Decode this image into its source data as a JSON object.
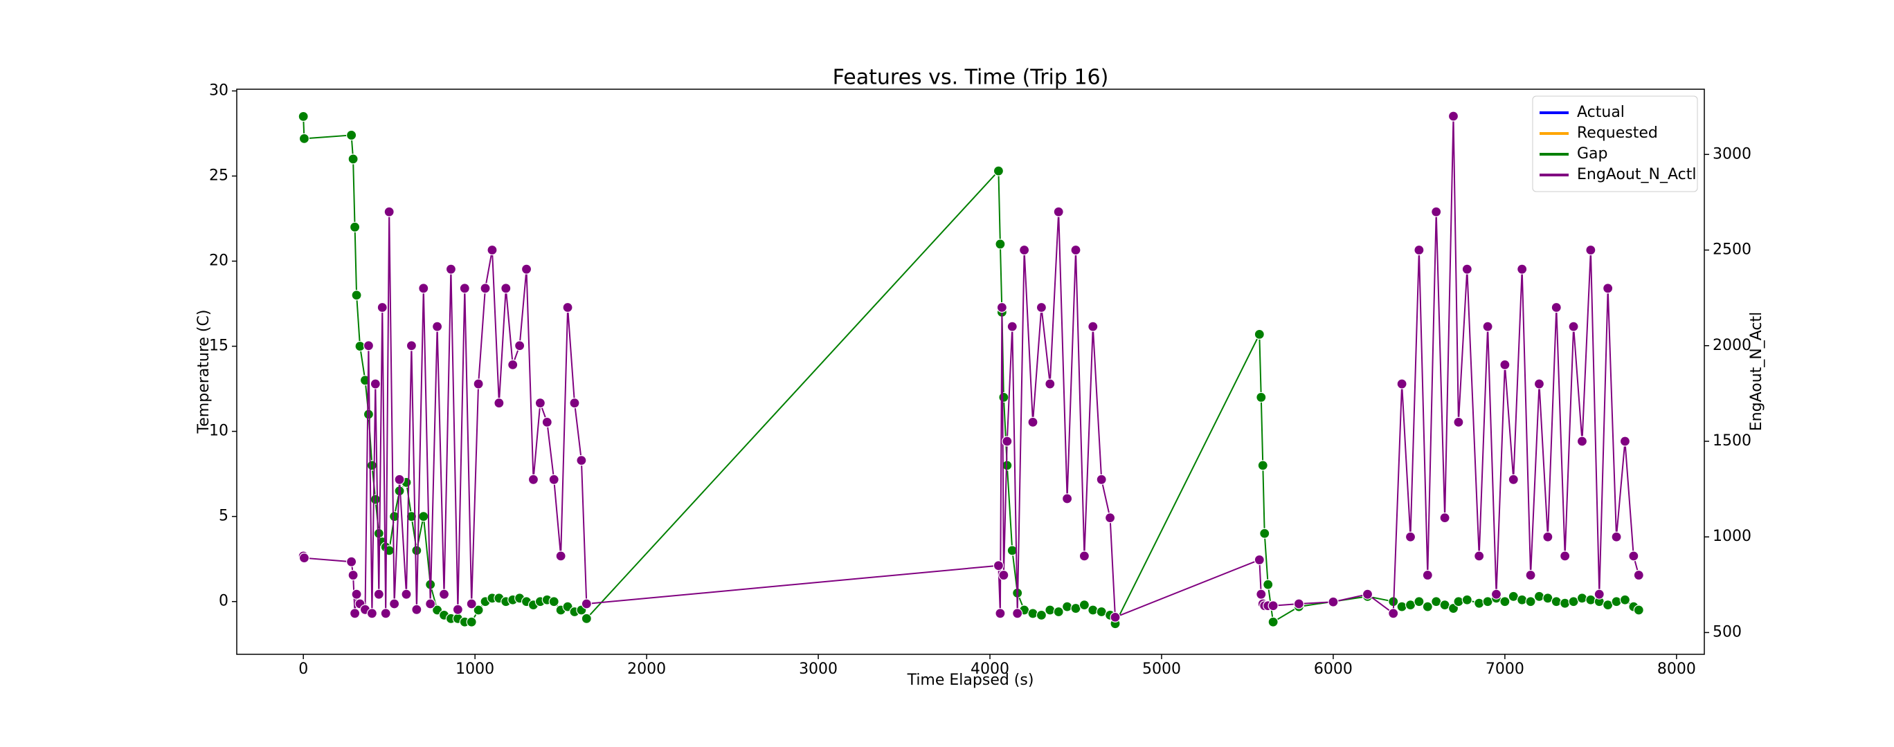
{
  "chart_data": {
    "type": "line",
    "title": "Features vs. Time (Trip 16)",
    "x_label": "Time Elapsed (s)",
    "y_label": "Temperature (C)",
    "y2_label": "EngAout_N_Actl",
    "xlim": [
      -388,
      8162
    ],
    "ylim": [
      -3.1,
      30.1
    ],
    "y2lim": [
      386,
      3341
    ],
    "xticks": [
      0,
      1000,
      2000,
      3000,
      4000,
      5000,
      6000,
      7000,
      8000
    ],
    "yticks": [
      0,
      5,
      10,
      15,
      20,
      25,
      30
    ],
    "y2ticks": [
      500,
      1000,
      1500,
      2000,
      2500,
      3000
    ],
    "legend": "upper right",
    "x": [
      0,
      5,
      280,
      290,
      300,
      310,
      330,
      360,
      380,
      400,
      420,
      440,
      460,
      480,
      500,
      530,
      560,
      600,
      630,
      660,
      700,
      740,
      780,
      820,
      860,
      900,
      940,
      980,
      1020,
      1060,
      1100,
      1140,
      1180,
      1220,
      1260,
      1300,
      1340,
      1380,
      1420,
      1460,
      1500,
      1540,
      1580,
      1620,
      1650,
      4050,
      4060,
      4070,
      4080,
      4100,
      4130,
      4160,
      4200,
      4250,
      4300,
      4350,
      4400,
      4450,
      4500,
      4550,
      4600,
      4650,
      4700,
      4730,
      5570,
      5580,
      5590,
      5600,
      5620,
      5650,
      5800,
      6000,
      6200,
      6350,
      6400,
      6450,
      6500,
      6550,
      6600,
      6650,
      6700,
      6730,
      6780,
      6850,
      6900,
      6950,
      7000,
      7050,
      7100,
      7150,
      7200,
      7250,
      7300,
      7350,
      7400,
      7450,
      7500,
      7550,
      7600,
      7650,
      7700,
      7750,
      7780
    ],
    "series": [
      {
        "name": "Actual",
        "color": "#0000ff"
      },
      {
        "name": "Requested",
        "color": "#ffa500"
      },
      {
        "name": "Gap",
        "color": "#008000",
        "values": [
          28.5,
          27.2,
          27.4,
          26,
          22,
          18,
          15,
          13,
          11,
          8,
          6,
          4,
          3.5,
          3.2,
          3,
          5,
          6.5,
          7,
          5,
          3,
          5,
          1,
          -0.5,
          -0.8,
          -1,
          -1,
          -1.2,
          -1.2,
          -0.5,
          0,
          0.2,
          0.2,
          0,
          0.1,
          0.2,
          0,
          -0.2,
          0,
          0.1,
          0,
          -0.5,
          -0.3,
          -0.6,
          -0.5,
          -1,
          25.3,
          21,
          17,
          12,
          8,
          3,
          0.5,
          -0.5,
          -0.7,
          -0.8,
          -0.5,
          -0.6,
          -0.3,
          -0.4,
          -0.2,
          -0.5,
          -0.6,
          -0.8,
          -1.3,
          15.7,
          12,
          8,
          4,
          1,
          -1.2,
          -0.3,
          0,
          0.3,
          0,
          -0.3,
          -0.2,
          0,
          -0.3,
          0,
          -0.2,
          -0.4,
          0,
          0.1,
          -0.1,
          0,
          0.2,
          0,
          0.3,
          0.1,
          0,
          0.3,
          0.2,
          0,
          -0.1,
          0,
          0.2,
          0.1,
          0,
          -0.2,
          0,
          0.1,
          -0.3,
          -0.5
        ]
      },
      {
        "name": "EngAout_N_Actl",
        "color": "#800080",
        "axis": "y2",
        "values": [
          900,
          890,
          870,
          800,
          600,
          700,
          650,
          620,
          2000,
          600,
          1800,
          700,
          2200,
          600,
          2700,
          650,
          1300,
          700,
          2000,
          620,
          2300,
          650,
          2100,
          700,
          2400,
          620,
          2300,
          650,
          1800,
          2300,
          2500,
          1700,
          2300,
          1900,
          2000,
          2400,
          1300,
          1700,
          1600,
          1300,
          900,
          2200,
          1700,
          1400,
          650,
          850,
          600,
          2200,
          800,
          1500,
          2100,
          600,
          2500,
          1600,
          2200,
          1800,
          2700,
          1200,
          2500,
          900,
          2100,
          1300,
          1100,
          580,
          880,
          700,
          650,
          640,
          640,
          640,
          650,
          660,
          700,
          600,
          1800,
          1000,
          2500,
          800,
          2700,
          1100,
          3200,
          1600,
          2400,
          900,
          2100,
          700,
          1900,
          1300,
          2400,
          800,
          1800,
          1000,
          2200,
          900,
          2100,
          1500,
          2500,
          700,
          2300,
          1000,
          1500,
          900,
          800
        ]
      }
    ]
  }
}
